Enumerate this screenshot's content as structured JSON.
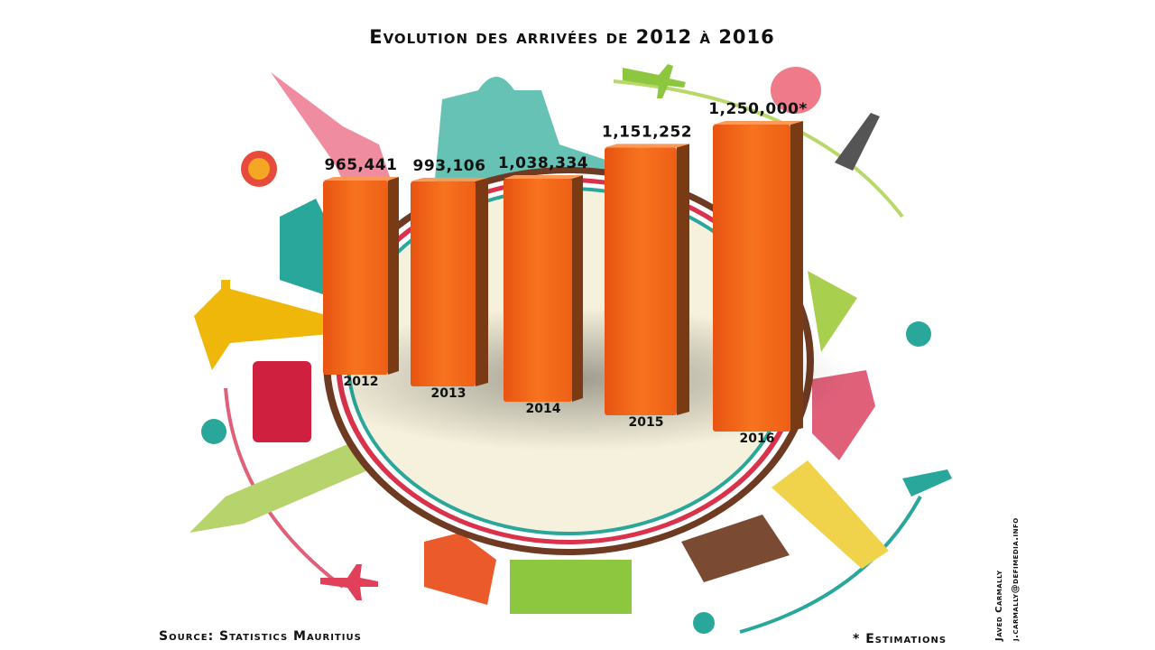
{
  "chart_data": {
    "type": "bar3d",
    "title": "Evolution des arrivées de 2012 à 2016",
    "categories": [
      "2012",
      "2013",
      "2014",
      "2015",
      "2016"
    ],
    "values": [
      965441,
      993106,
      1038334,
      1151252,
      1250000
    ],
    "value_labels": [
      "965,441",
      "993,106",
      "1,038,334",
      "1,151,252",
      "1,250,000*"
    ],
    "color": "#f26a1b",
    "source": "Source: Statistics Mauritius",
    "note": "* Estimations",
    "author": "Javed Carmally",
    "email": "j.carmally@defimedia.info"
  }
}
